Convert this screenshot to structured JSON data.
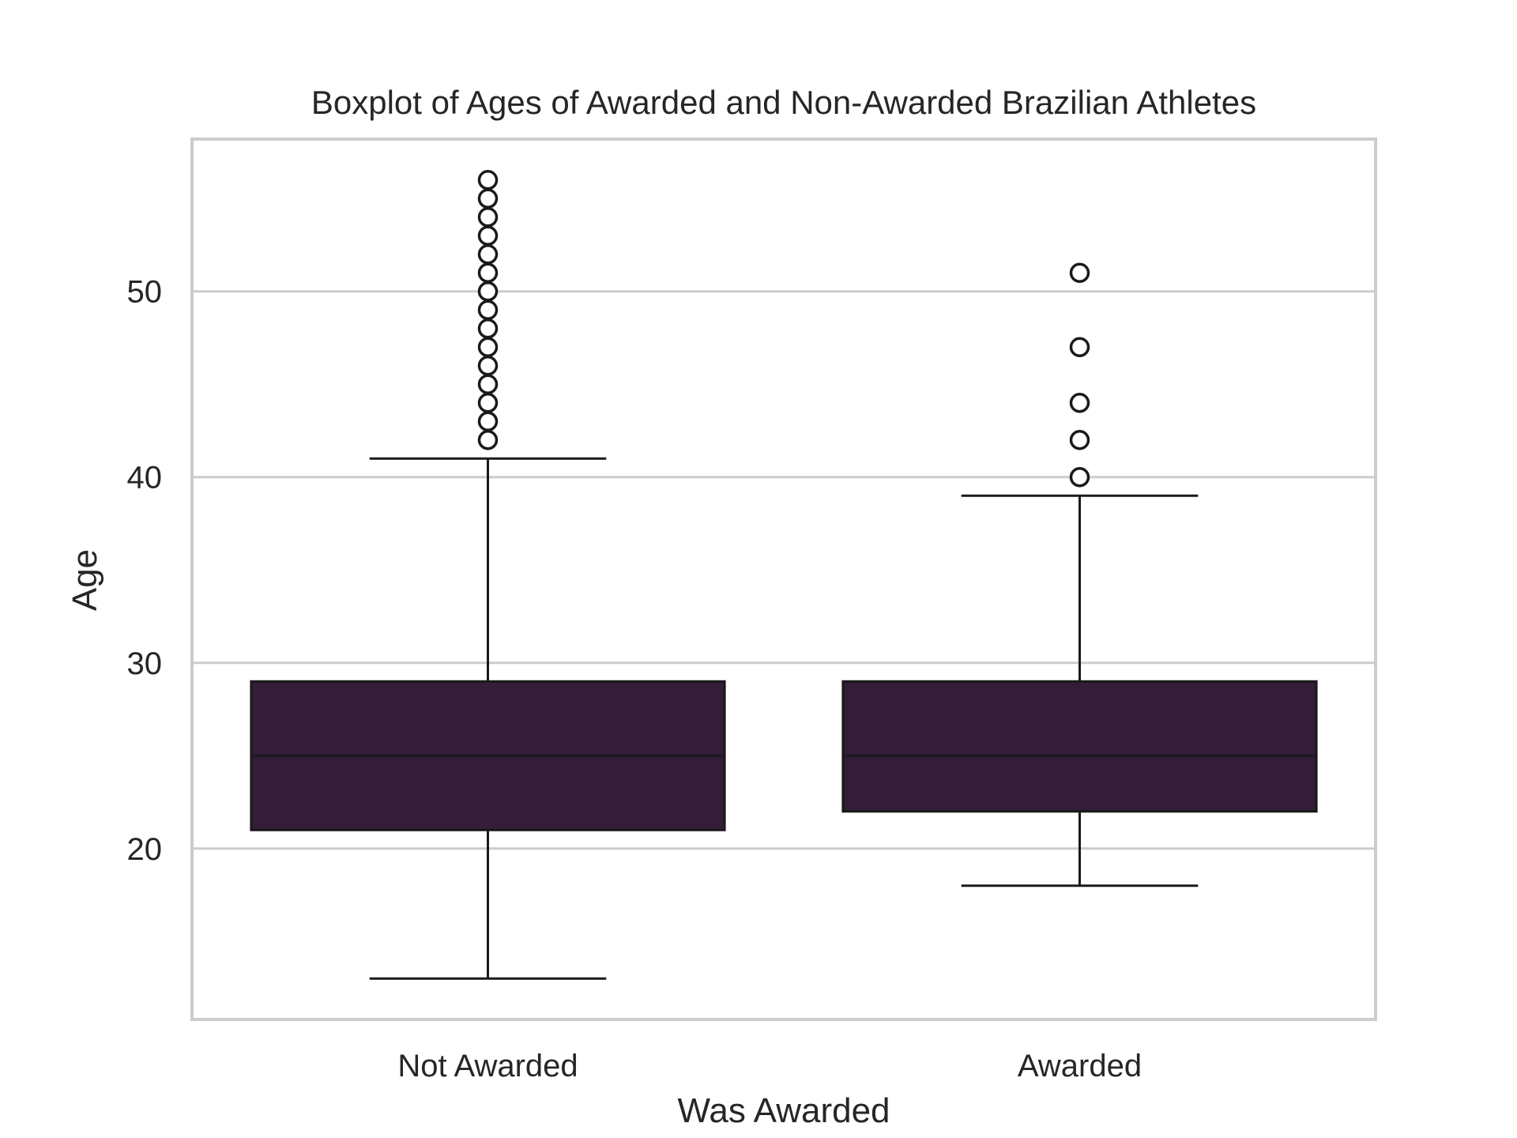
{
  "chart_data": {
    "type": "boxplot",
    "title": "Boxplot of Ages of Awarded and Non-Awarded Brazilian Athletes",
    "xlabel": "Was Awarded",
    "ylabel": "Age",
    "ylim": [
      10.8,
      58.2
    ],
    "yticks": [
      20,
      30,
      40,
      50
    ],
    "grid": "horizontal",
    "categories": [
      "Not Awarded",
      "Awarded"
    ],
    "box_color": "#331d38",
    "edge_color": "#1a1a1a",
    "grid_color": "#cccccc",
    "boxes": [
      {
        "name": "Not Awarded",
        "whisker_low": 13,
        "q1": 21,
        "median": 25,
        "q3": 29,
        "whisker_high": 41,
        "outliers": [
          42,
          43,
          44,
          45,
          46,
          47,
          48,
          49,
          50,
          51,
          52,
          53,
          54,
          55,
          56
        ]
      },
      {
        "name": "Awarded",
        "whisker_low": 18,
        "q1": 22,
        "median": 25,
        "q3": 29,
        "whisker_high": 39,
        "outliers": [
          40,
          42,
          44,
          47,
          51
        ]
      }
    ]
  }
}
